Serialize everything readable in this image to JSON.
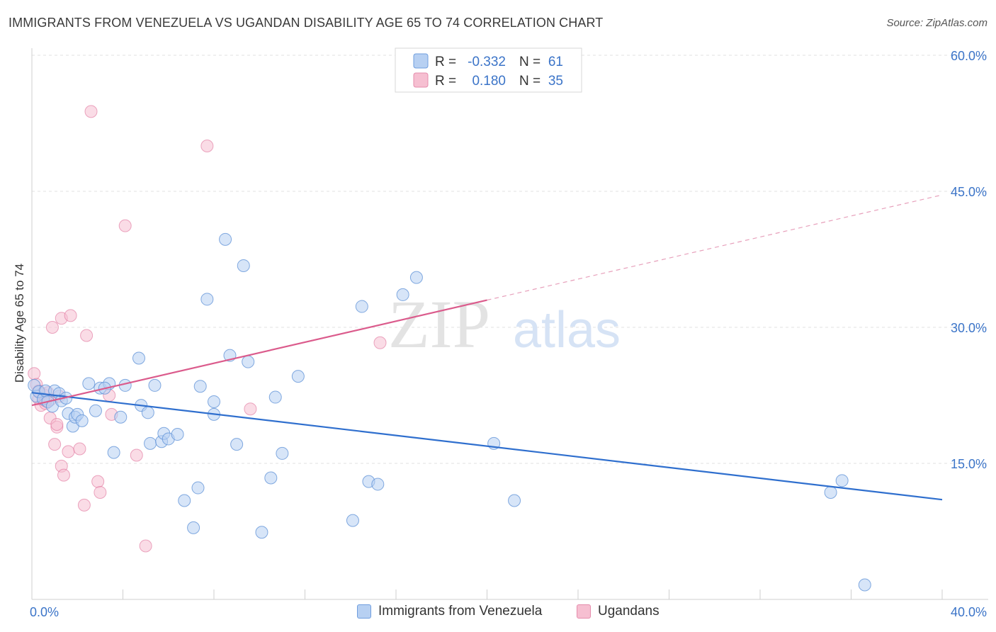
{
  "header": {
    "title": "IMMIGRANTS FROM VENEZUELA VS UGANDAN DISABILITY AGE 65 TO 74 CORRELATION CHART",
    "source": "Source: ZipAtlas.com"
  },
  "watermark": {
    "zip": "ZIP",
    "atlas": "atlas"
  },
  "chart_data": {
    "type": "scatter",
    "title": "IMMIGRANTS FROM VENEZUELA VS UGANDAN DISABILITY AGE 65 TO 74 CORRELATION CHART",
    "ylabel": "Disability Age 65 to 74",
    "xlabel": "",
    "xlim": [
      0,
      40
    ],
    "ylim": [
      0,
      60
    ],
    "x_tick_labels": [
      "0.0%",
      "40.0%"
    ],
    "y_tick_values": [
      15,
      30,
      45,
      60
    ],
    "y_tick_labels": [
      "15.0%",
      "30.0%",
      "45.0%",
      "60.0%"
    ],
    "grid": true,
    "legend_position": "top-center",
    "series": [
      {
        "name": "Immigrants from Venezuela",
        "color": "#5b8fd6",
        "fill": "#b7d0f2",
        "R": "-0.332",
        "N": "61",
        "trend": {
          "x": [
            0,
            40
          ],
          "y": [
            22.8,
            11.0
          ]
        },
        "points": [
          [
            0.1,
            23.6
          ],
          [
            0.2,
            22.4
          ],
          [
            0.3,
            22.9
          ],
          [
            0.5,
            22.1
          ],
          [
            0.6,
            23.0
          ],
          [
            0.7,
            21.8
          ],
          [
            0.9,
            21.3
          ],
          [
            1.0,
            23.0
          ],
          [
            1.2,
            22.7
          ],
          [
            1.3,
            21.9
          ],
          [
            1.5,
            22.2
          ],
          [
            1.6,
            20.5
          ],
          [
            1.8,
            19.1
          ],
          [
            1.9,
            20.1
          ],
          [
            2.0,
            20.4
          ],
          [
            2.2,
            19.7
          ],
          [
            2.5,
            23.8
          ],
          [
            2.8,
            20.8
          ],
          [
            3.0,
            23.3
          ],
          [
            3.4,
            23.8
          ],
          [
            3.2,
            23.3
          ],
          [
            3.6,
            16.2
          ],
          [
            4.1,
            23.6
          ],
          [
            3.9,
            20.1
          ],
          [
            4.7,
            26.6
          ],
          [
            4.8,
            21.4
          ],
          [
            5.1,
            20.6
          ],
          [
            5.2,
            17.2
          ],
          [
            5.4,
            23.6
          ],
          [
            5.7,
            17.4
          ],
          [
            5.8,
            18.3
          ],
          [
            6.0,
            17.7
          ],
          [
            6.4,
            18.2
          ],
          [
            6.7,
            10.9
          ],
          [
            7.1,
            7.9
          ],
          [
            7.3,
            12.3
          ],
          [
            7.4,
            23.5
          ],
          [
            7.7,
            33.1
          ],
          [
            8.0,
            21.8
          ],
          [
            8.0,
            20.4
          ],
          [
            8.5,
            39.7
          ],
          [
            8.7,
            26.9
          ],
          [
            9.0,
            17.1
          ],
          [
            9.3,
            36.8
          ],
          [
            9.5,
            26.2
          ],
          [
            10.1,
            7.4
          ],
          [
            10.5,
            13.4
          ],
          [
            10.7,
            22.3
          ],
          [
            11.0,
            16.1
          ],
          [
            11.7,
            24.6
          ],
          [
            14.1,
            8.7
          ],
          [
            14.5,
            32.3
          ],
          [
            14.8,
            13.0
          ],
          [
            15.2,
            12.7
          ],
          [
            16.3,
            33.6
          ],
          [
            16.9,
            35.5
          ],
          [
            20.3,
            17.2
          ],
          [
            21.2,
            10.9
          ],
          [
            35.1,
            11.8
          ],
          [
            35.6,
            13.1
          ],
          [
            36.6,
            1.6
          ]
        ]
      },
      {
        "name": "Ugandans",
        "color": "#e06f9a",
        "fill": "#f6bfd1",
        "R": "0.180",
        "N": "35",
        "trend": {
          "x": [
            0,
            20
          ],
          "y": [
            21.4,
            33.0
          ]
        },
        "trend_extension": {
          "x": [
            20,
            40
          ],
          "y": [
            33.0,
            44.6
          ]
        },
        "points": [
          [
            0.1,
            24.9
          ],
          [
            0.2,
            23.7
          ],
          [
            0.3,
            22.1
          ],
          [
            0.4,
            21.4
          ],
          [
            0.5,
            22.6
          ],
          [
            0.6,
            21.6
          ],
          [
            0.7,
            22.8
          ],
          [
            0.8,
            22.0
          ],
          [
            0.8,
            20.0
          ],
          [
            0.9,
            30.0
          ],
          [
            1.0,
            17.1
          ],
          [
            1.1,
            19.0
          ],
          [
            1.1,
            19.3
          ],
          [
            1.3,
            31.0
          ],
          [
            1.3,
            14.7
          ],
          [
            1.4,
            13.7
          ],
          [
            1.6,
            16.3
          ],
          [
            1.7,
            31.3
          ],
          [
            2.1,
            16.6
          ],
          [
            2.3,
            10.4
          ],
          [
            2.4,
            29.1
          ],
          [
            2.6,
            53.8
          ],
          [
            2.9,
            13.0
          ],
          [
            3.0,
            11.8
          ],
          [
            3.4,
            22.5
          ],
          [
            3.5,
            20.4
          ],
          [
            4.1,
            41.2
          ],
          [
            4.6,
            15.9
          ],
          [
            5.0,
            5.9
          ],
          [
            7.7,
            50.0
          ],
          [
            9.6,
            21.0
          ],
          [
            15.3,
            28.3
          ],
          [
            0.3,
            23.0
          ],
          [
            0.6,
            21.9
          ],
          [
            1.2,
            22.4
          ]
        ]
      }
    ]
  },
  "legend_top": {
    "rows": [
      {
        "r_label": "R =",
        "r_value": "-0.332",
        "n_label": "N =",
        "n_value": "61"
      },
      {
        "r_label": "R =",
        "r_value": "0.180",
        "n_label": "N =",
        "n_value": "35"
      }
    ]
  },
  "legend_bottom": {
    "items": [
      "Immigrants from Venezuela",
      "Ugandans"
    ]
  }
}
